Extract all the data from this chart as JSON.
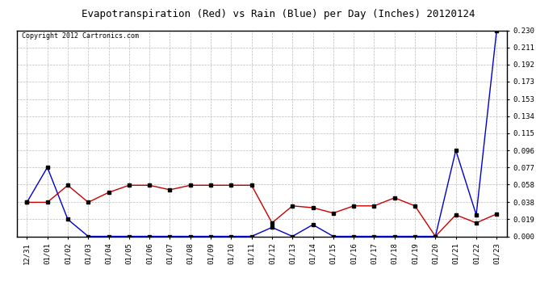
{
  "title": "Evapotranspiration (Red) vs Rain (Blue) per Day (Inches) 20120124",
  "copyright": "Copyright 2012 Cartronics.com",
  "x_labels": [
    "12/31",
    "01/01",
    "01/02",
    "01/03",
    "01/04",
    "01/05",
    "01/06",
    "01/07",
    "01/08",
    "01/09",
    "01/10",
    "01/11",
    "01/12",
    "01/13",
    "01/14",
    "01/15",
    "01/16",
    "01/17",
    "01/18",
    "01/19",
    "01/20",
    "01/21",
    "01/22",
    "01/23"
  ],
  "red_data": [
    0.038,
    0.038,
    0.057,
    0.038,
    0.049,
    0.057,
    0.057,
    0.052,
    0.057,
    0.057,
    0.057,
    0.057,
    0.015,
    0.034,
    0.032,
    0.026,
    0.034,
    0.034,
    0.043,
    0.034,
    0.0,
    0.024,
    0.015,
    0.025
  ],
  "blue_data": [
    0.038,
    0.077,
    0.019,
    0.0,
    0.0,
    0.0,
    0.0,
    0.0,
    0.0,
    0.0,
    0.0,
    0.0,
    0.01,
    0.0,
    0.013,
    0.0,
    0.0,
    0.0,
    0.0,
    0.0,
    0.0,
    0.096,
    0.024,
    0.23
  ],
  "ylim": [
    0.0,
    0.23
  ],
  "yticks": [
    0.0,
    0.019,
    0.038,
    0.058,
    0.077,
    0.096,
    0.115,
    0.134,
    0.153,
    0.173,
    0.192,
    0.211,
    0.23
  ],
  "background_color": "#ffffff",
  "grid_color": "#bbbbbb",
  "red_color": "#cc0000",
  "blue_color": "#0000cc",
  "title_fontsize": 9,
  "copyright_fontsize": 6,
  "tick_fontsize": 6.5
}
